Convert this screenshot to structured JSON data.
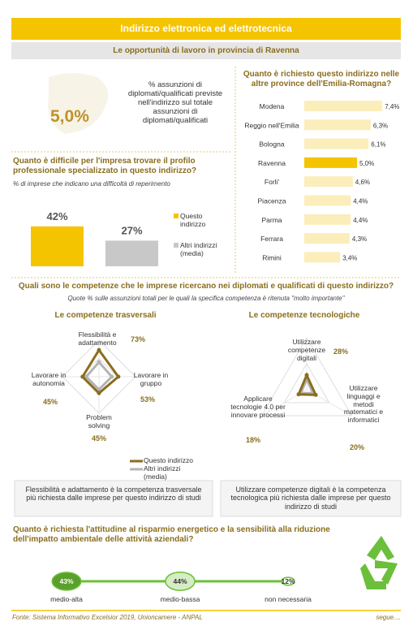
{
  "header": {
    "title": "Indirizzo elettronica ed elettrotecnica",
    "subtitle": "Le opportunità di lavoro in provincia di Ravenna"
  },
  "share": {
    "value_text": "5,0%",
    "text": "% assunzioni di diplomati/qualificati previste nell'indirizzo sul totale assunzioni di diplomati/qualificati"
  },
  "chart_data": [
    {
      "type": "hbar",
      "title": "Quanto è richiesto questo indirizzo nelle altre province dell'Emilia-Romagna?",
      "categories": [
        "Modena",
        "Reggio nell'Emilia",
        "Bologna",
        "Ravenna",
        "Forli'",
        "Piacenza",
        "Parma",
        "Ferrara",
        "Rimini"
      ],
      "values": [
        7.4,
        6.3,
        6.1,
        5.0,
        4.6,
        4.4,
        4.4,
        4.3,
        3.4
      ],
      "value_labels": [
        "7,4%",
        "6,3%",
        "6,1%",
        "5,0%",
        "4,6%",
        "4,4%",
        "4,4%",
        "4,3%",
        "3,4%"
      ],
      "colors": [
        "#fbeebb",
        "#fbeebb",
        "#fbeebb",
        "#f5c400",
        "#fbeebb",
        "#fbeebb",
        "#fbeebb",
        "#fbeebb",
        "#fbeebb"
      ]
    },
    {
      "type": "bar",
      "title": "Quanto è difficile per l'impresa trovare il profilo professionale specializzato in questo indirizzo?",
      "subtitle": "% di imprese che indicano una difficoltà di reperimento",
      "categories": [
        "Questo indirizzo",
        "Altri indirizzi (media)"
      ],
      "values": [
        42,
        27
      ],
      "value_labels": [
        "42%",
        "27%"
      ],
      "colors": [
        "#f5c400",
        "#c8c8c8"
      ]
    },
    {
      "type": "radar",
      "title": "Le competenze trasversali",
      "categories": [
        "Flessibilità e adattamento",
        "Lavorare in gruppo",
        "Problem solving",
        "Lavorare in autonomia"
      ],
      "rlim": [
        0,
        100
      ],
      "series": [
        {
          "name": "Questo indirizzo",
          "color": "#8a6d1d",
          "values": [
            73,
            53,
            45,
            45
          ],
          "value_labels": [
            "73%",
            "53%",
            "45%",
            "45%"
          ]
        },
        {
          "name": "Altri indirizzi (media)",
          "color": "#b4b4b4",
          "values": [
            40,
            35,
            35,
            35
          ]
        }
      ]
    },
    {
      "type": "radar",
      "title": "Le competenze tecnologiche",
      "categories": [
        "Utilizzare competenze digitali",
        "Utilizzare linguaggi e metodi matematici e informatici",
        "Applicare tecnologie 4.0 per innovare processi"
      ],
      "rlim": [
        0,
        100
      ],
      "series": [
        {
          "color": "#8a6d1d",
          "values": [
            28,
            20,
            18
          ],
          "value_labels": [
            "28%",
            "20%",
            "18%"
          ]
        },
        {
          "color": "#b4b4b4",
          "values": [
            20,
            14,
            13
          ]
        }
      ]
    },
    {
      "type": "bubble",
      "title": "Quanto è richiesta l'attitudine al risparmio energetico e la sensibilità alla riduzione dell'impatto ambientale delle attività aziendali?",
      "categories": [
        "medio-alta",
        "medio-bassa",
        "non necessaria"
      ],
      "values": [
        43,
        44,
        12
      ],
      "value_labels": [
        "43%",
        "44%",
        "12%"
      ],
      "colors": [
        "#5aa02c",
        "#d6ecc4",
        "#ffffff"
      ],
      "line_color": "#6cbf3a"
    }
  ],
  "section": {
    "title": "Quali sono le competenze  che le imprese ricercano nei diplomati e qualificati di questo indirizzo?",
    "subtitle": "Quote % sulle assunzioni totali per le quali la specifica competenza è ritenuta \"molto importante\""
  },
  "notes": [
    "Flessibilità e adattamento è la competenza trasversale più richiesta dalle imprese per questo indirizzo di studi",
    "Utilizzare competenze digitali è la competenza tecnologica più richiesta dalle imprese per questo indirizzo di studi"
  ],
  "footer": {
    "source": "Fonte: Sistema Informativo Excelsior 2019, Unioncamere - ANPAL",
    "more": "segue...."
  }
}
